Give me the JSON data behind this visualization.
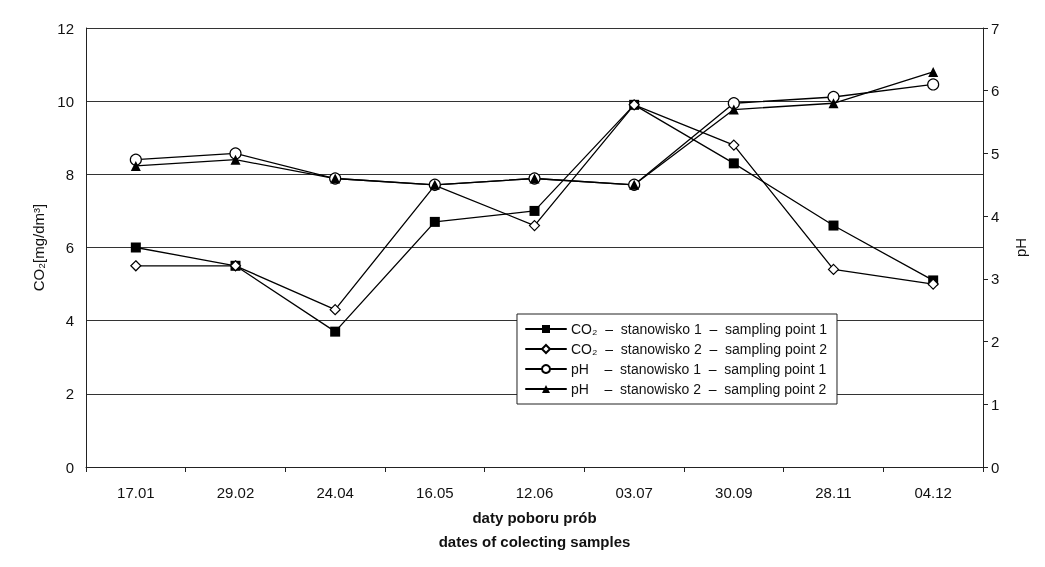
{
  "chart_data": {
    "type": "line",
    "xlabel": "daty poboru prób\ndates of colecting samples",
    "ylabel": "CO₂[mg/dm³]",
    "y2label": "pH",
    "categories": [
      "17.01",
      "29.02",
      "24.04",
      "16.05",
      "12.06",
      "03.07",
      "30.09",
      "28.11",
      "04.12"
    ],
    "series": [
      {
        "name": "CO₂  –  stanowisko 1  –  sampling point 1",
        "color": "#000000",
        "marker": "square",
        "values": [
          6.0,
          5.5,
          3.7,
          6.7,
          7.0,
          9.9,
          8.3,
          6.6,
          5.1
        ]
      },
      {
        "name": "CO₂  –  stanowisko 2  –  sampling point 2",
        "color": "#000000",
        "marker": "diamond",
        "values": [
          5.5,
          5.5,
          4.3,
          7.7,
          6.6,
          9.9,
          8.8,
          5.4,
          5.0
        ]
      },
      {
        "name": "pH    –  stanowisko 1  –  sampling point 1",
        "color": "#000000",
        "marker": "circle",
        "axis": "y2",
        "values": [
          4.9,
          5.0,
          4.6,
          4.5,
          4.6,
          4.5,
          5.8,
          5.9,
          6.1
        ]
      },
      {
        "name": "pH    –  stanowisko 2  –  sampling point 2",
        "color": "#000000",
        "marker": "triangle",
        "axis": "y2",
        "values": [
          4.8,
          4.9,
          4.6,
          4.5,
          4.6,
          4.5,
          5.7,
          5.8,
          6.3
        ]
      }
    ],
    "ylim": [
      0,
      12
    ],
    "yticks": [
      0,
      2,
      4,
      6,
      8,
      10,
      12
    ],
    "y2lim": [
      0,
      7
    ],
    "y2ticks": [
      0,
      1,
      2,
      3,
      4,
      5,
      6,
      7
    ],
    "grid": "y",
    "legend": "bottom right",
    "line_style": "solid"
  }
}
